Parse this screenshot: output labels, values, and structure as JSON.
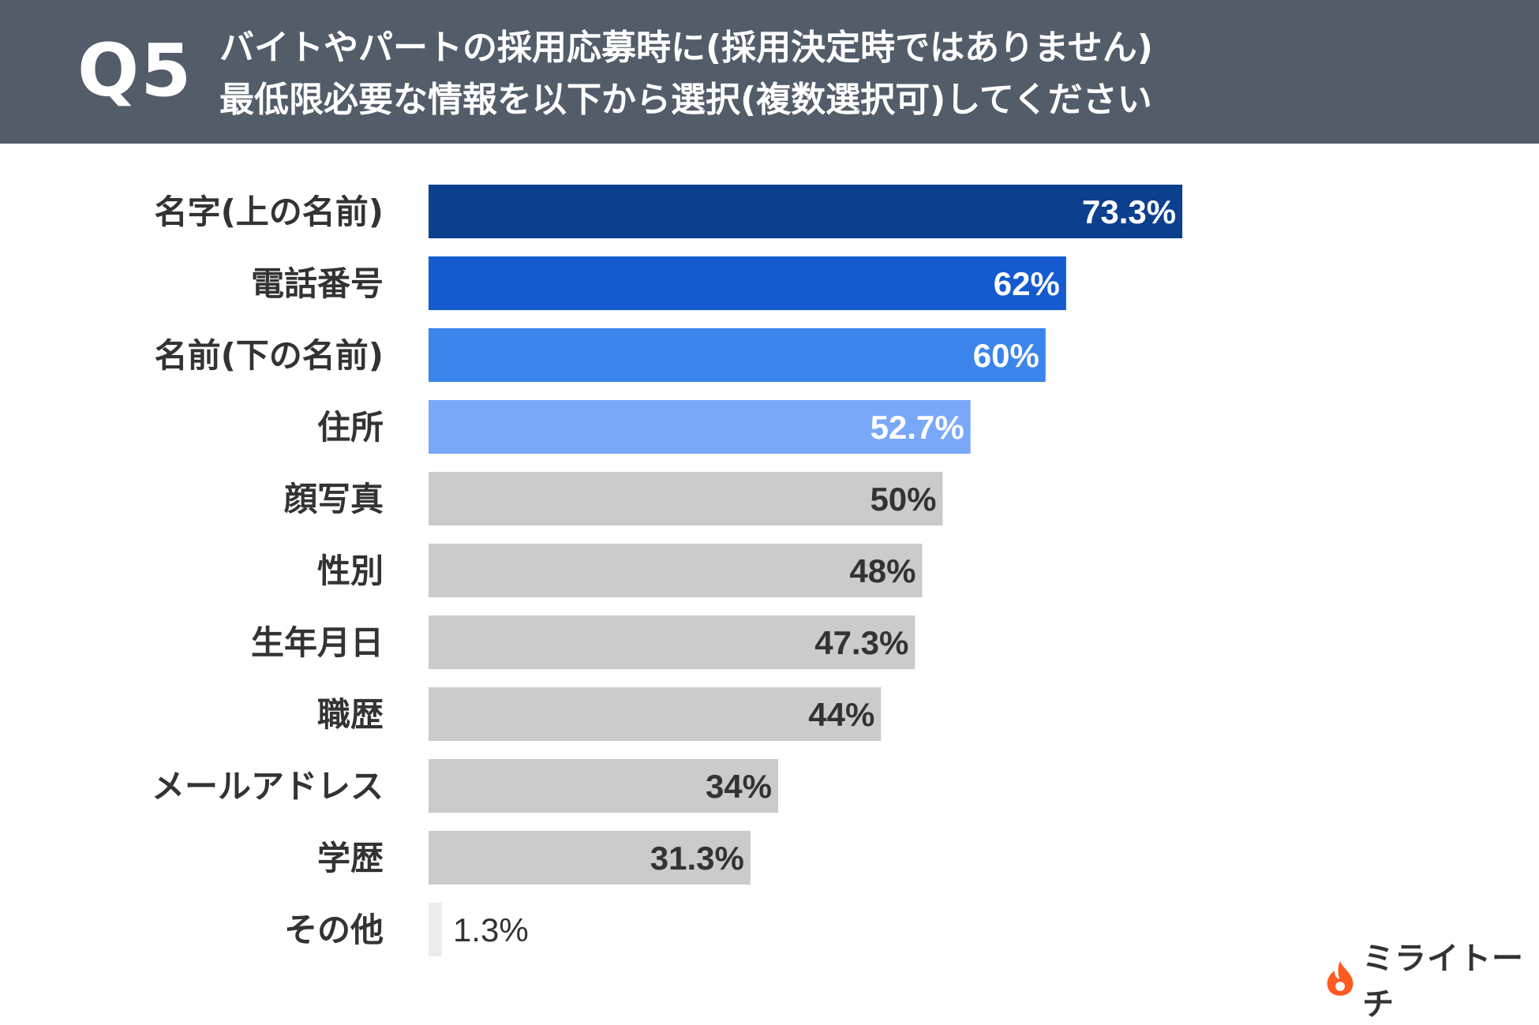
{
  "header": {
    "question_number": "Q5",
    "question_line1": "バイトやパートの採用応募時に(採用決定時ではありません)",
    "question_line2": "最低限必要な情報を以下から選択(複数選択可)してください"
  },
  "chart_data": {
    "type": "bar",
    "orientation": "horizontal",
    "categories": [
      "名字(上の名前)",
      "電話番号",
      "名前(下の名前)",
      "住所",
      "顔写真",
      "性別",
      "生年月日",
      "職歴",
      "メールアドレス",
      "学歴",
      "その他"
    ],
    "values": [
      73.3,
      62,
      60,
      52.7,
      50,
      48,
      47.3,
      44,
      34,
      31.3,
      1.3
    ],
    "value_labels": [
      "73.3%",
      "62%",
      "60%",
      "52.7%",
      "50%",
      "48%",
      "47.3%",
      "44%",
      "34%",
      "31.3%",
      "1.3%"
    ],
    "unit": "%",
    "xlim": [
      0,
      100
    ],
    "grid": false,
    "legend": "none",
    "colors": [
      "#0d3f8f",
      "#135bcf",
      "#3a84ec",
      "#7aa8f9",
      "#cbcbcb",
      "#cbcbcb",
      "#cbcbcb",
      "#cbcbcb",
      "#cbcbcb",
      "#cbcbcb",
      "#ececec"
    ],
    "label_colors": [
      "#ffffff",
      "#ffffff",
      "#ffffff",
      "#ffffff",
      "#333333",
      "#333333",
      "#333333",
      "#333333",
      "#333333",
      "#333333",
      "#333333"
    ]
  },
  "logo": {
    "text": "ミライトーチ",
    "icon": "flame-icon",
    "color": "#ff5a1f"
  }
}
